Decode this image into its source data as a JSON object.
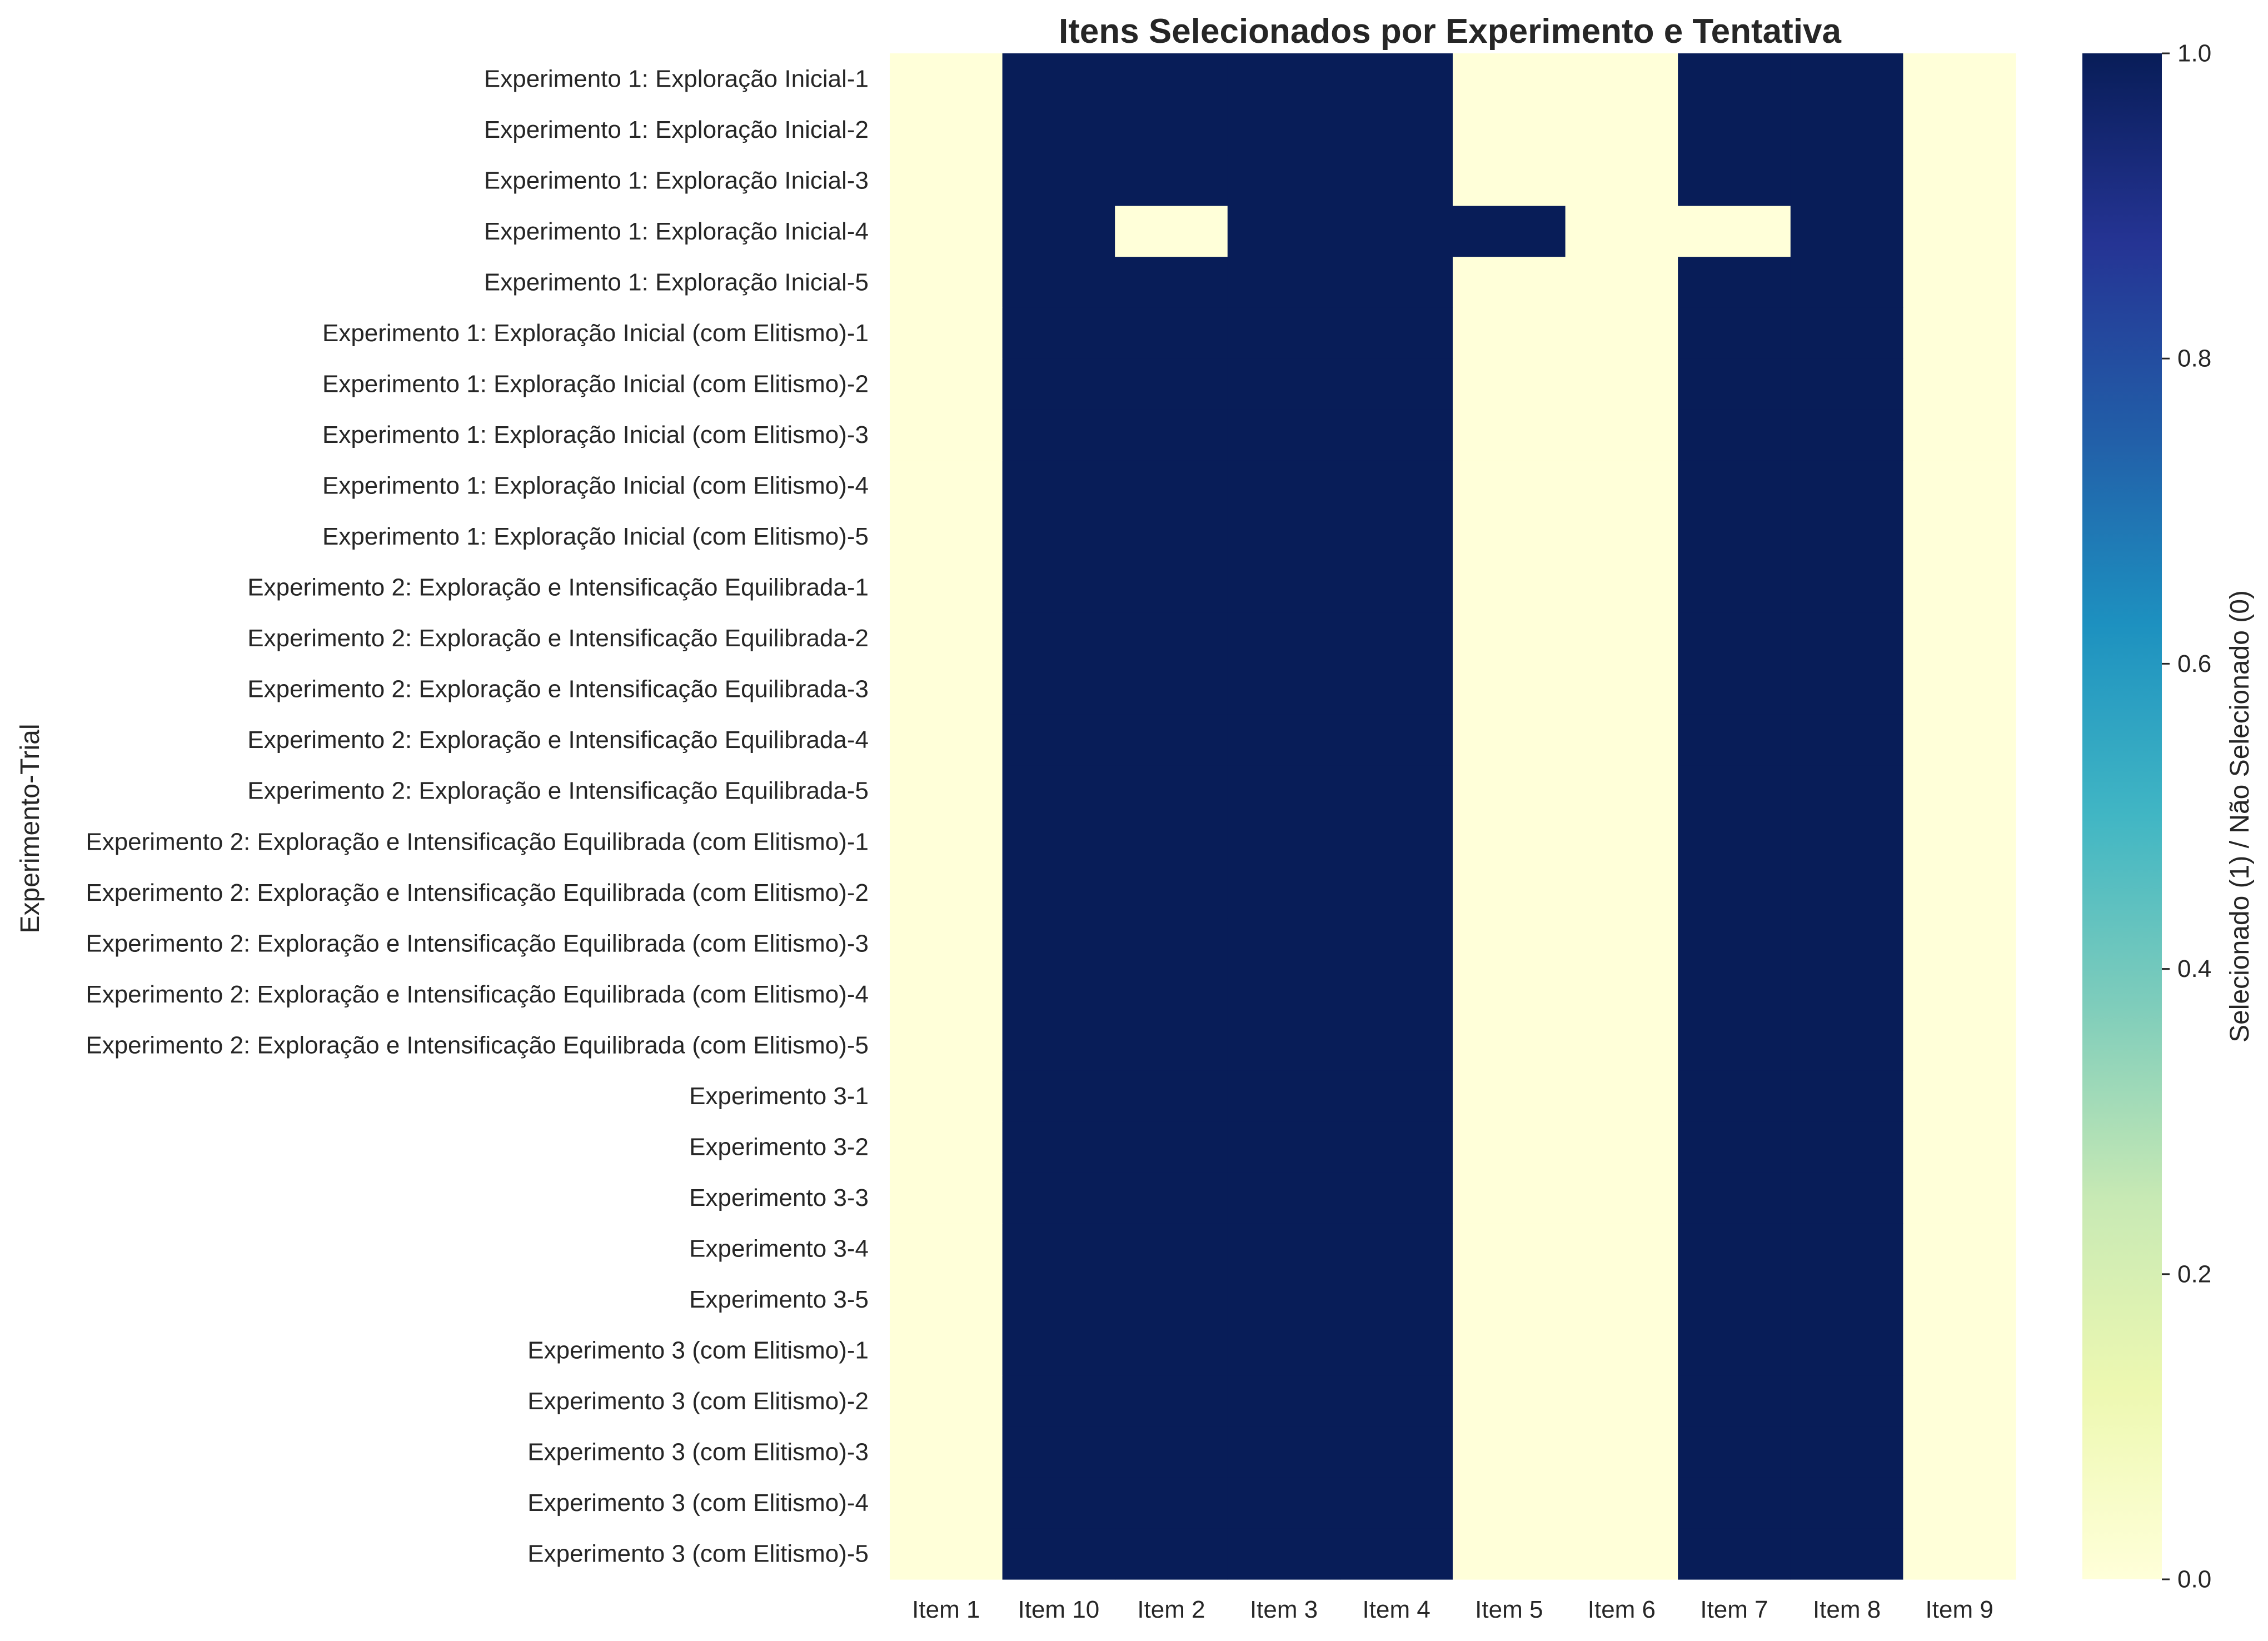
{
  "chart_data": {
    "type": "heatmap",
    "title": "Itens Selecionados por Experimento e Tentativa",
    "xlabel": "",
    "ylabel": "Experimento-Trial",
    "colorbar_label": "Selecionado (1) / Não Selecionado (0)",
    "colorbar_ticks": [
      "0.0",
      "0.2",
      "0.4",
      "0.6",
      "0.8",
      "1.0"
    ],
    "vmin": 0,
    "vmax": 1,
    "colormap": "YlGnBu",
    "colors": {
      "low": "#ffffd9",
      "high": "#081d58",
      "stops": [
        "#ffffd9",
        "#edf8b1",
        "#c7e9b4",
        "#7fcdbb",
        "#41b6c4",
        "#1d91c0",
        "#225ea8",
        "#253494",
        "#081d58"
      ]
    },
    "columns": [
      "Item 1",
      "Item 10",
      "Item 2",
      "Item 3",
      "Item 4",
      "Item 5",
      "Item 6",
      "Item 7",
      "Item 8",
      "Item 9"
    ],
    "rows": [
      "Experimento 1: Exploração Inicial-1",
      "Experimento 1: Exploração Inicial-2",
      "Experimento 1: Exploração Inicial-3",
      "Experimento 1: Exploração Inicial-4",
      "Experimento 1: Exploração Inicial-5",
      "Experimento 1: Exploração Inicial (com Elitismo)-1",
      "Experimento 1: Exploração Inicial (com Elitismo)-2",
      "Experimento 1: Exploração Inicial (com Elitismo)-3",
      "Experimento 1: Exploração Inicial (com Elitismo)-4",
      "Experimento 1: Exploração Inicial (com Elitismo)-5",
      "Experimento 2: Exploração e Intensificação Equilibrada-1",
      "Experimento 2: Exploração e Intensificação Equilibrada-2",
      "Experimento 2: Exploração e Intensificação Equilibrada-3",
      "Experimento 2: Exploração e Intensificação Equilibrada-4",
      "Experimento 2: Exploração e Intensificação Equilibrada-5",
      "Experimento 2: Exploração e Intensificação Equilibrada (com Elitismo)-1",
      "Experimento 2: Exploração e Intensificação Equilibrada (com Elitismo)-2",
      "Experimento 2: Exploração e Intensificação Equilibrada (com Elitismo)-3",
      "Experimento 2: Exploração e Intensificação Equilibrada (com Elitismo)-4",
      "Experimento 2: Exploração e Intensificação Equilibrada (com Elitismo)-5",
      "Experimento 3-1",
      "Experimento 3-2",
      "Experimento 3-3",
      "Experimento 3-4",
      "Experimento 3-5",
      "Experimento 3 (com Elitismo)-1",
      "Experimento 3 (com Elitismo)-2",
      "Experimento 3 (com Elitismo)-3",
      "Experimento 3 (com Elitismo)-4",
      "Experimento 3 (com Elitismo)-5"
    ],
    "values": [
      [
        0,
        1,
        1,
        1,
        1,
        0,
        0,
        1,
        1,
        0
      ],
      [
        0,
        1,
        1,
        1,
        1,
        0,
        0,
        1,
        1,
        0
      ],
      [
        0,
        1,
        1,
        1,
        1,
        0,
        0,
        1,
        1,
        0
      ],
      [
        0,
        1,
        0,
        1,
        1,
        1,
        0,
        0,
        1,
        0
      ],
      [
        0,
        1,
        1,
        1,
        1,
        0,
        0,
        1,
        1,
        0
      ],
      [
        0,
        1,
        1,
        1,
        1,
        0,
        0,
        1,
        1,
        0
      ],
      [
        0,
        1,
        1,
        1,
        1,
        0,
        0,
        1,
        1,
        0
      ],
      [
        0,
        1,
        1,
        1,
        1,
        0,
        0,
        1,
        1,
        0
      ],
      [
        0,
        1,
        1,
        1,
        1,
        0,
        0,
        1,
        1,
        0
      ],
      [
        0,
        1,
        1,
        1,
        1,
        0,
        0,
        1,
        1,
        0
      ],
      [
        0,
        1,
        1,
        1,
        1,
        0,
        0,
        1,
        1,
        0
      ],
      [
        0,
        1,
        1,
        1,
        1,
        0,
        0,
        1,
        1,
        0
      ],
      [
        0,
        1,
        1,
        1,
        1,
        0,
        0,
        1,
        1,
        0
      ],
      [
        0,
        1,
        1,
        1,
        1,
        0,
        0,
        1,
        1,
        0
      ],
      [
        0,
        1,
        1,
        1,
        1,
        0,
        0,
        1,
        1,
        0
      ],
      [
        0,
        1,
        1,
        1,
        1,
        0,
        0,
        1,
        1,
        0
      ],
      [
        0,
        1,
        1,
        1,
        1,
        0,
        0,
        1,
        1,
        0
      ],
      [
        0,
        1,
        1,
        1,
        1,
        0,
        0,
        1,
        1,
        0
      ],
      [
        0,
        1,
        1,
        1,
        1,
        0,
        0,
        1,
        1,
        0
      ],
      [
        0,
        1,
        1,
        1,
        1,
        0,
        0,
        1,
        1,
        0
      ],
      [
        0,
        1,
        1,
        1,
        1,
        0,
        0,
        1,
        1,
        0
      ],
      [
        0,
        1,
        1,
        1,
        1,
        0,
        0,
        1,
        1,
        0
      ],
      [
        0,
        1,
        1,
        1,
        1,
        0,
        0,
        1,
        1,
        0
      ],
      [
        0,
        1,
        1,
        1,
        1,
        0,
        0,
        1,
        1,
        0
      ],
      [
        0,
        1,
        1,
        1,
        1,
        0,
        0,
        1,
        1,
        0
      ],
      [
        0,
        1,
        1,
        1,
        1,
        0,
        0,
        1,
        1,
        0
      ],
      [
        0,
        1,
        1,
        1,
        1,
        0,
        0,
        1,
        1,
        0
      ],
      [
        0,
        1,
        1,
        1,
        1,
        0,
        0,
        1,
        1,
        0
      ],
      [
        0,
        1,
        1,
        1,
        1,
        0,
        0,
        1,
        1,
        0
      ],
      [
        0,
        1,
        1,
        1,
        1,
        0,
        0,
        1,
        1,
        0
      ]
    ]
  }
}
